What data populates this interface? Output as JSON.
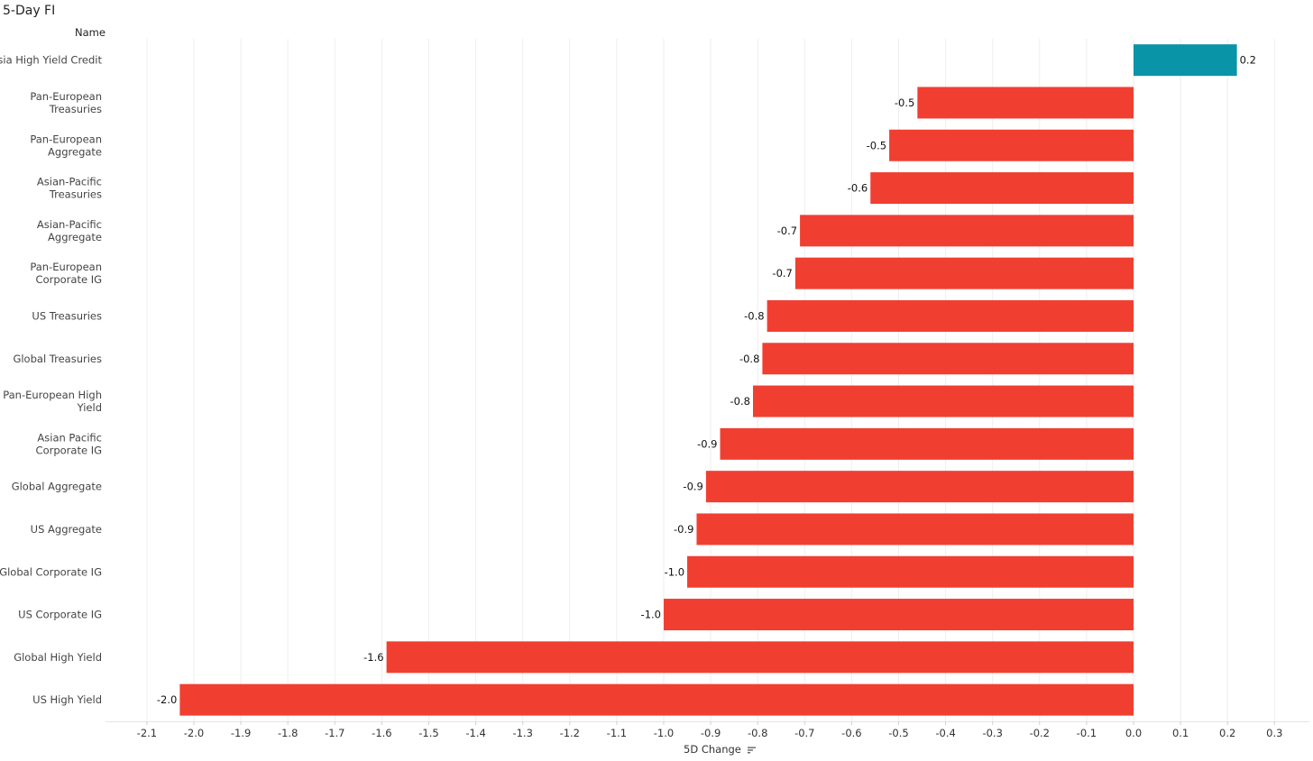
{
  "title": "5-Day FI",
  "row_header": "Name",
  "axis_title": "5D Change",
  "sort_icon": "sort-descending-icon",
  "colors": {
    "positive": "#0A94A8",
    "negative": "#F03F31",
    "grid": "#eeeeee",
    "text": "#333333"
  },
  "chart_data": {
    "type": "bar",
    "orientation": "horizontal",
    "categories": [
      "Asia High Yield Credit",
      "Pan-European Treasuries",
      "Pan-European Aggregate",
      "Asian-Pacific Treasuries",
      "Asian-Pacific Aggregate",
      "Pan-European Corporate IG",
      "US Treasuries",
      "Global Treasuries",
      "Pan-European High Yield",
      "Asian Pacific Corporate IG",
      "Global Aggregate",
      "US Aggregate",
      "Global Corporate IG",
      "US Corporate IG",
      "Global High Yield",
      "US High Yield"
    ],
    "category_lines": [
      [
        "Asia High Yield Credit"
      ],
      [
        "Pan-European",
        "Treasuries"
      ],
      [
        "Pan-European",
        "Aggregate"
      ],
      [
        "Asian-Pacific",
        "Treasuries"
      ],
      [
        "Asian-Pacific",
        "Aggregate"
      ],
      [
        "Pan-European",
        "Corporate IG"
      ],
      [
        "US Treasuries"
      ],
      [
        "Global Treasuries"
      ],
      [
        "Pan-European High",
        "Yield"
      ],
      [
        "Asian Pacific",
        "Corporate IG"
      ],
      [
        "Global Aggregate"
      ],
      [
        "US Aggregate"
      ],
      [
        "Global Corporate IG"
      ],
      [
        "US Corporate IG"
      ],
      [
        "Global High Yield"
      ],
      [
        "US High Yield"
      ]
    ],
    "values": [
      0.22,
      -0.46,
      -0.52,
      -0.56,
      -0.71,
      -0.72,
      -0.78,
      -0.79,
      -0.81,
      -0.88,
      -0.91,
      -0.93,
      -0.95,
      -1.0,
      -1.59,
      -2.03
    ],
    "data_labels": [
      "0.2",
      "-0.5",
      "-0.5",
      "-0.6",
      "-0.7",
      "-0.7",
      "-0.8",
      "-0.8",
      "-0.8",
      "-0.9",
      "-0.9",
      "-0.9",
      "-1.0",
      "-1.0",
      "-1.6",
      "-2.0"
    ],
    "xlim": [
      -2.2,
      0.37
    ],
    "x_ticks": [
      -2.1,
      -2.0,
      -1.9,
      -1.8,
      -1.7,
      -1.6,
      -1.5,
      -1.4,
      -1.3,
      -1.2,
      -1.1,
      -1.0,
      -0.9,
      -0.8,
      -0.7,
      -0.6,
      -0.5,
      -0.4,
      -0.3,
      -0.2,
      -0.1,
      0.0,
      0.1,
      0.2,
      0.3
    ],
    "x_tick_labels": [
      "-2.1",
      "-2.0",
      "-1.9",
      "-1.8",
      "-1.7",
      "-1.6",
      "-1.5",
      "-1.4",
      "-1.3",
      "-1.2",
      "-1.1",
      "-1.0",
      "-0.9",
      "-0.8",
      "-0.7",
      "-0.6",
      "-0.5",
      "-0.4",
      "-0.3",
      "-0.2",
      "-0.1",
      "0.0",
      "0.1",
      "0.2",
      "0.3"
    ],
    "xlabel": "5D Change",
    "grid": true,
    "legend": "none"
  }
}
